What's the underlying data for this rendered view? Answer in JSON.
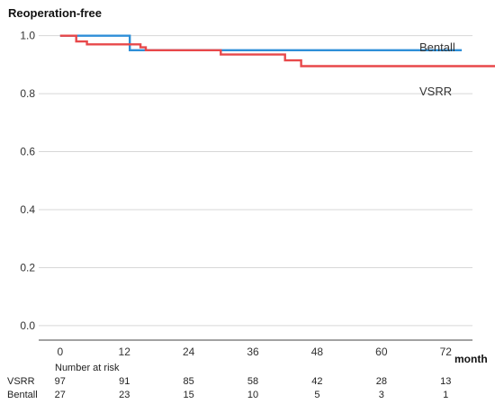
{
  "chart_data": {
    "type": "line",
    "title": "",
    "ylabel": "Reoperation-free",
    "xlabel": "month",
    "xlim": [
      -4,
      77
    ],
    "ylim": [
      -0.05,
      1.03
    ],
    "x_ticks": [
      "0",
      "12",
      "24",
      "36",
      "48",
      "60",
      "72"
    ],
    "y_ticks": [
      "0.0",
      "0.2",
      "0.4",
      "0.6",
      "0.8",
      "1.0"
    ],
    "grid": "horizontal",
    "series": [
      {
        "name": "Bentall",
        "color": "#2e8fd8",
        "x": [
          0,
          13,
          13,
          77
        ],
        "y": [
          1.0,
          1.0,
          0.95,
          0.95
        ],
        "end_x": 75
      },
      {
        "name": "VSRR",
        "color": "#e8484a",
        "x": [
          0,
          3,
          3,
          5,
          5,
          15,
          15,
          16,
          16,
          30,
          30,
          42,
          42,
          45,
          45,
          82
        ],
        "y": [
          1.0,
          1.0,
          0.98,
          0.98,
          0.97,
          0.97,
          0.96,
          0.96,
          0.95,
          0.95,
          0.935,
          0.935,
          0.915,
          0.915,
          0.895,
          0.895
        ]
      }
    ],
    "risk_table": {
      "title": "Number at risk",
      "rows": [
        {
          "label": "VSRR",
          "values": [
            "97",
            "91",
            "85",
            "58",
            "42",
            "28",
            "13"
          ]
        },
        {
          "label": "Bentall",
          "values": [
            "27",
            "23",
            "15",
            "10",
            "5",
            "3",
            "1"
          ]
        }
      ]
    }
  }
}
